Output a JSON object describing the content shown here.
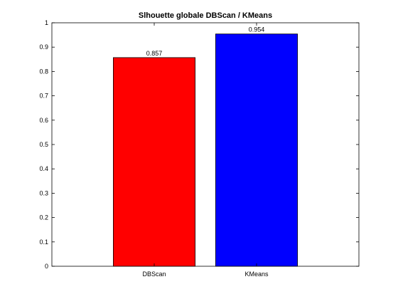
{
  "chart_data": {
    "type": "bar",
    "title": "Slhouette globale DBScan / KMeans",
    "xlabel": "",
    "ylabel": "",
    "categories": [
      "DBScan",
      "KMeans"
    ],
    "values": [
      0.857,
      0.954
    ],
    "data_labels": [
      "0.857",
      "0.954"
    ],
    "colors": [
      "#ff0000",
      "#0000ff"
    ],
    "ylim": [
      0,
      1
    ],
    "yticks": [
      0,
      0.1,
      0.2,
      0.3,
      0.4,
      0.5,
      0.6,
      0.7,
      0.8,
      0.9,
      1
    ],
    "ytick_labels": [
      "0",
      "0.1",
      "0.2",
      "0.3",
      "0.4",
      "0.5",
      "0.6",
      "0.7",
      "0.8",
      "0.9",
      "1"
    ],
    "grid": false,
    "legend": "none"
  }
}
